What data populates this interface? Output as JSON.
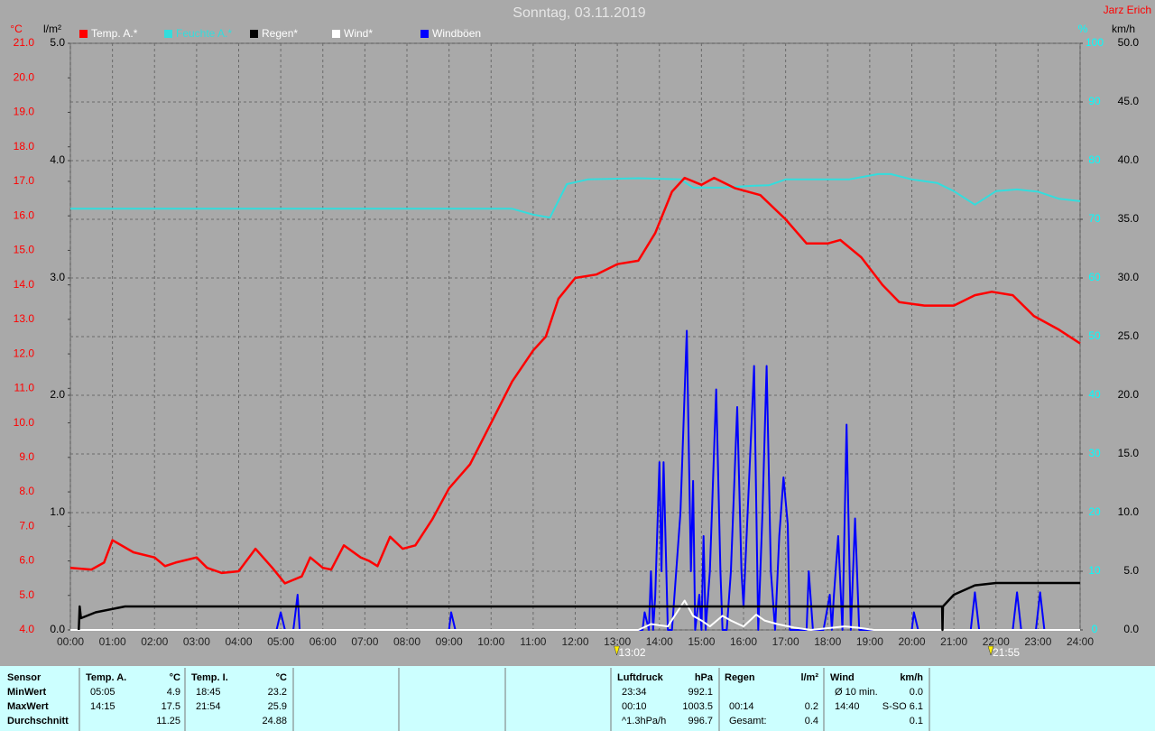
{
  "chart_data": {
    "type": "line",
    "title": "Sonntag, 03.11.2019",
    "author": "Jarz Erich",
    "xlim": [
      0,
      24
    ],
    "xticks": [
      {
        "value": 0,
        "label": "00:00"
      },
      {
        "value": 1,
        "label": "01:00"
      },
      {
        "value": 2,
        "label": "02:00"
      },
      {
        "value": 3,
        "label": "03:00"
      },
      {
        "value": 4,
        "label": "04:00"
      },
      {
        "value": 5,
        "label": "05:00"
      },
      {
        "value": 6,
        "label": "06:00"
      },
      {
        "value": 7,
        "label": "07:00"
      },
      {
        "value": 8,
        "label": "08:00"
      },
      {
        "value": 9,
        "label": "09:00"
      },
      {
        "value": 10,
        "label": "10:00"
      },
      {
        "value": 11,
        "label": "11:00"
      },
      {
        "value": 12,
        "label": "12:00"
      },
      {
        "value": 13,
        "label": "13:00"
      },
      {
        "value": 14,
        "label": "14:00"
      },
      {
        "value": 15,
        "label": "15:00"
      },
      {
        "value": 16,
        "label": "16:00"
      },
      {
        "value": 17,
        "label": "17:00"
      },
      {
        "value": 18,
        "label": "18:00"
      },
      {
        "value": 19,
        "label": "19:00"
      },
      {
        "value": 20,
        "label": "20:00"
      },
      {
        "value": 21,
        "label": "21:00"
      },
      {
        "value": 22,
        "label": "22:00"
      },
      {
        "value": 23,
        "label": "23:00"
      },
      {
        "value": 24,
        "label": "24:00"
      }
    ],
    "ylabel": "°C",
    "ycolor": "#ff0000",
    "ylim": [
      4,
      21
    ],
    "yticks": [
      {
        "value": 4,
        "label": "4.0"
      },
      {
        "value": 5,
        "label": "5.0"
      },
      {
        "value": 6,
        "label": "6.0"
      },
      {
        "value": 7,
        "label": "7.0"
      },
      {
        "value": 8,
        "label": "8.0"
      },
      {
        "value": 9,
        "label": "9.0"
      },
      {
        "value": 10,
        "label": "10.0"
      },
      {
        "value": 11,
        "label": "11.0"
      },
      {
        "value": 12,
        "label": "12.0"
      },
      {
        "value": 13,
        "label": "13.0"
      },
      {
        "value": 14,
        "label": "14.0"
      },
      {
        "value": 15,
        "label": "15.0"
      },
      {
        "value": 16,
        "label": "16.0"
      },
      {
        "value": 17,
        "label": "17.0"
      },
      {
        "value": 18,
        "label": "18.0"
      },
      {
        "value": 19,
        "label": "19.0"
      },
      {
        "value": 20,
        "label": "20.0"
      },
      {
        "value": 21,
        "label": "21.0"
      }
    ],
    "y2label": "l/m²",
    "y2color": "#000000",
    "y2lim": [
      0,
      5
    ],
    "y2ticks": [
      {
        "value": 0,
        "label": "0.0"
      },
      {
        "value": 1,
        "label": "1.0"
      },
      {
        "value": 2,
        "label": "2.0"
      },
      {
        "value": 3,
        "label": "3.0"
      },
      {
        "value": 4,
        "label": "4.0"
      },
      {
        "value": 5,
        "label": "5.0"
      }
    ],
    "y3label": "%",
    "y3color": "#00ffff",
    "y3lim": [
      0,
      100
    ],
    "y3ticks": [
      0,
      10,
      20,
      30,
      40,
      50,
      60,
      70,
      80,
      90,
      100
    ],
    "y4label": "km/h",
    "y4color": "#000000",
    "y4lim": [
      0,
      50
    ],
    "y4ticks": [
      {
        "value": 0,
        "label": "0.0"
      },
      {
        "value": 5,
        "label": "5.0"
      },
      {
        "value": 10,
        "label": "10.0"
      },
      {
        "value": 15,
        "label": "15.0"
      },
      {
        "value": 20,
        "label": "20.0"
      },
      {
        "value": 25,
        "label": "25.0"
      },
      {
        "value": 30,
        "label": "30.0"
      },
      {
        "value": 35,
        "label": "35.0"
      },
      {
        "value": 40,
        "label": "40.0"
      },
      {
        "value": 45,
        "label": "45.0"
      },
      {
        "value": 50,
        "label": "50.0"
      }
    ],
    "grid": true,
    "series": [
      {
        "name": "Feuchte A.*",
        "color": "#33dddd",
        "axis": "y3",
        "x": [
          0,
          10.5,
          11.0,
          11.4,
          11.8,
          12.3,
          13.5,
          14.5,
          14.8,
          15.5,
          16.2,
          16.6,
          17.0,
          18.5,
          19.2,
          19.5,
          20.0,
          20.6,
          21.0,
          21.5,
          22.0,
          22.5,
          23.0,
          23.5,
          24
        ],
        "values": [
          71.8,
          71.8,
          70.8,
          70.3,
          76,
          76.8,
          77,
          76.8,
          75.4,
          75.4,
          75.7,
          75.8,
          76.8,
          76.8,
          77.7,
          77.7,
          76.8,
          76.2,
          74.8,
          72.5,
          74.8,
          75.1,
          74.7,
          73.5,
          73.1
        ]
      },
      {
        "name": "Windböen",
        "color": "#0000ff",
        "axis": "y4",
        "x": [
          0,
          4.9,
          5.0,
          5.1,
          5.3,
          5.4,
          5.45,
          9.0,
          9.05,
          9.15,
          13.6,
          13.65,
          13.75,
          13.8,
          13.85,
          13.9,
          14.0,
          14.05,
          14.1,
          14.2,
          14.3,
          14.4,
          14.5,
          14.65,
          14.75,
          14.8,
          14.85,
          14.95,
          15.0,
          15.05,
          15.1,
          15.2,
          15.35,
          15.45,
          15.5,
          15.6,
          15.7,
          15.85,
          15.95,
          16.0,
          16.25,
          16.35,
          16.45,
          16.55,
          16.65,
          16.75,
          16.85,
          16.95,
          17.05,
          17.1,
          17.5,
          17.55,
          17.65,
          17.9,
          18.05,
          18.1,
          18.15,
          18.25,
          18.35,
          18.45,
          18.55,
          18.65,
          18.75,
          20.0,
          20.05,
          20.15,
          21.4,
          21.5,
          21.6,
          22.4,
          22.5,
          22.6,
          22.95,
          23.05,
          23.15,
          24
        ],
        "values": [
          0,
          0,
          1.5,
          0,
          0,
          3.0,
          0,
          0,
          1.5,
          0,
          0,
          1.5,
          0,
          5.0,
          0,
          2.8,
          14.3,
          5,
          14.3,
          0,
          0,
          5,
          10,
          25.5,
          5,
          12.7,
          0,
          3,
          0,
          8,
          0,
          5,
          20.5,
          5,
          0,
          0,
          5,
          19,
          5,
          2,
          22.5,
          0,
          10,
          22.5,
          5,
          0,
          8,
          13,
          9,
          0,
          0,
          5,
          0,
          0,
          3,
          0,
          3,
          8,
          0,
          17.5,
          0,
          9.5,
          0,
          0,
          1.5,
          0,
          0,
          3.2,
          0,
          0,
          3.2,
          0,
          0,
          3.2,
          0,
          0
        ]
      },
      {
        "name": "Wind*",
        "color": "#ffffff",
        "axis": "y4",
        "x": [
          0,
          13.5,
          13.8,
          14.2,
          14.6,
          14.8,
          15.0,
          15.2,
          15.5,
          15.7,
          16.0,
          16.3,
          16.5,
          16.8,
          17.2,
          17.6,
          18.4,
          18.7,
          19.1,
          24
        ],
        "values": [
          0,
          0,
          0.5,
          0.3,
          2.5,
          1.2,
          0.8,
          0.3,
          1.2,
          0.8,
          0.3,
          1.3,
          0.8,
          0.5,
          0.2,
          0,
          0.3,
          0.2,
          0,
          0
        ]
      },
      {
        "name": "Temp. A.*",
        "color": "#ff0000",
        "axis": "y",
        "x": [
          0,
          0.5,
          0.8,
          1.0,
          1.5,
          2.0,
          2.25,
          2.5,
          3.0,
          3.25,
          3.6,
          4.0,
          4.4,
          4.8,
          5.1,
          5.5,
          5.7,
          6.0,
          6.2,
          6.5,
          6.9,
          7.1,
          7.3,
          7.6,
          7.9,
          8.2,
          8.6,
          9.0,
          9.5,
          10.0,
          10.5,
          11.0,
          11.3,
          11.6,
          12.0,
          12.5,
          13.0,
          13.5,
          13.9,
          14.3,
          14.6,
          15.0,
          15.3,
          15.8,
          16.4,
          17.0,
          17.5,
          18.0,
          18.3,
          18.8,
          19.3,
          19.7,
          20.3,
          21.0,
          21.5,
          21.9,
          22.4,
          22.9,
          23.5,
          24.0
        ],
        "values": [
          5.8,
          5.75,
          5.95,
          6.6,
          6.25,
          6.1,
          5.85,
          5.95,
          6.1,
          5.8,
          5.65,
          5.7,
          6.35,
          5.8,
          5.35,
          5.55,
          6.1,
          5.8,
          5.75,
          6.45,
          6.1,
          6.0,
          5.85,
          6.7,
          6.35,
          6.45,
          7.2,
          8.1,
          8.8,
          10.0,
          11.2,
          12.1,
          12.5,
          13.6,
          14.2,
          14.3,
          14.6,
          14.7,
          15.5,
          16.7,
          17.1,
          16.9,
          17.1,
          16.8,
          16.6,
          15.9,
          15.2,
          15.2,
          15.3,
          14.8,
          14.0,
          13.5,
          13.4,
          13.4,
          13.7,
          13.8,
          13.7,
          13.1,
          12.7,
          12.3
        ]
      },
      {
        "name": "Regen*",
        "color": "#000000",
        "axis": "y2",
        "x": [
          0.2,
          0.22,
          0.25,
          0.6,
          1.3,
          20.72,
          20.73,
          20.74,
          21.0,
          21.5,
          22.0,
          24
        ],
        "values": [
          0,
          0.2,
          0.1,
          0.15,
          0.2,
          0.2,
          0,
          0.2,
          0.3,
          0.38,
          0.4,
          0.4
        ]
      }
    ],
    "annotations": [
      {
        "x": 13.03,
        "text": "13:02"
      },
      {
        "x": 21.92,
        "text": "21:55"
      }
    ]
  },
  "stats": {
    "row_labels": [
      "Sensor",
      "MinWert",
      "MaxWert",
      "Durchschnitt"
    ],
    "groups": [
      {
        "name": "Temp. A.",
        "unit": "°C",
        "rows": [
          [
            "05:05",
            "4.9"
          ],
          [
            "14:15",
            "17.5"
          ],
          [
            null,
            "11.25"
          ]
        ]
      },
      {
        "name": "Temp. I.",
        "unit": "°C",
        "rows": [
          [
            "18:45",
            "23.2"
          ],
          [
            "21:54",
            "25.9"
          ],
          [
            null,
            "24.88"
          ]
        ]
      },
      {
        "name": "Luftdruck",
        "unit": "hPa",
        "rows": [
          [
            "23:34",
            "992.1"
          ],
          [
            "00:10",
            "1003.5"
          ],
          [
            "^1.3hPa/h",
            "996.7"
          ]
        ]
      },
      {
        "name": "Regen",
        "unit": "l/m²",
        "rows": [
          [
            null,
            null
          ],
          [
            "00:14",
            "0.2"
          ],
          [
            "Gesamt:",
            "0.4"
          ]
        ]
      },
      {
        "name": "Wind",
        "unit": "km/h",
        "rows": [
          [
            "Ø 10 min.",
            "0.0"
          ],
          [
            "14:40",
            "S-SO 6.1"
          ],
          [
            null,
            "0.1"
          ]
        ]
      }
    ]
  }
}
